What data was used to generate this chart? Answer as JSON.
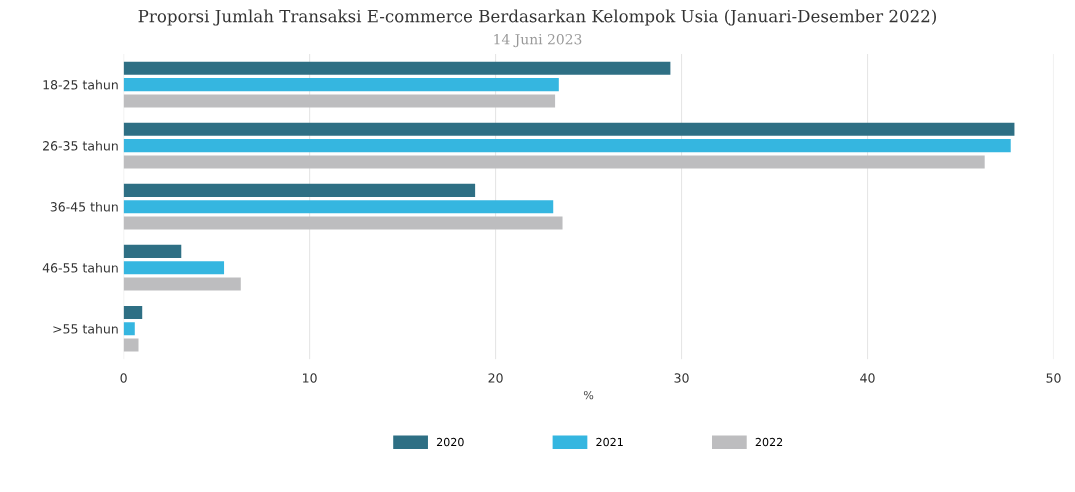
{
  "chart_data": {
    "type": "bar",
    "orientation": "horizontal",
    "title": "Proporsi Jumlah Transaksi E-commerce Berdasarkan Kelompok Usia (Januari-Desember 2022)",
    "subtitle": "14 Juni 2023",
    "xlabel": "%",
    "categories": [
      "18-25 tahun",
      "26-35 tahun",
      "36-45 thun",
      "46-55 tahun",
      ">55 tahun"
    ],
    "series": [
      {
        "name": "2020",
        "color": "#2e6f84",
        "values": [
          29.4,
          47.9,
          18.9,
          3.1,
          1.0
        ]
      },
      {
        "name": "2021",
        "color": "#35b6e0",
        "values": [
          23.4,
          47.7,
          23.1,
          5.4,
          0.6
        ]
      },
      {
        "name": "2022",
        "color": "#bdbdbf",
        "values": [
          23.2,
          46.3,
          23.6,
          6.3,
          0.8
        ]
      }
    ],
    "xlim": [
      0,
      50
    ],
    "xticks": [
      0,
      10,
      20,
      30,
      40,
      50
    ],
    "grid": "x",
    "legend": "bottom"
  }
}
